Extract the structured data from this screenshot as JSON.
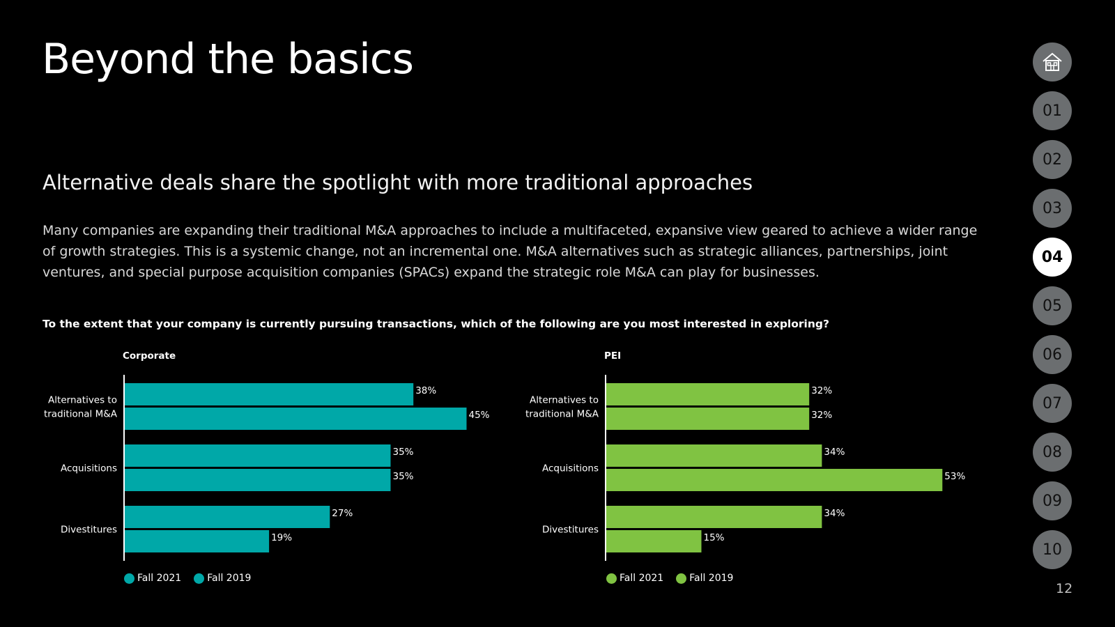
{
  "page": {
    "title": "Beyond the basics",
    "subtitle": "Alternative deals share the spotlight with more traditional approaches",
    "body": "Many companies are expanding their traditional M&A approaches to include a multifaceted, expansive view geared to achieve a wider range of growth strategies. This is a systemic change, not an incremental one. M&A alternatives such as strategic alliances, partnerships, joint ventures, and special purpose acquisition companies (SPACs) expand the strategic role M&A can play for businesses.",
    "question": "To the extent that your company is currently pursuing transactions, which of the following are you most interested in exploring?",
    "page_number": "12"
  },
  "nav": {
    "home_icon": "home-icon",
    "items": [
      "01",
      "02",
      "03",
      "04",
      "05",
      "06",
      "07",
      "08",
      "09",
      "10"
    ],
    "active": "04",
    "colors": {
      "inactive": "#6b6e70",
      "active": "#ffffff"
    }
  },
  "chart_data": [
    {
      "type": "bar",
      "orientation": "horizontal",
      "title": "Corporate",
      "categories": [
        "Alternatives to traditional M&A",
        "Acquisitions",
        "Divestitures"
      ],
      "category_lines": [
        [
          "Alternatives to",
          "traditional M&A"
        ],
        [
          "Acquisitions"
        ],
        [
          "Divestitures"
        ]
      ],
      "series": [
        {
          "name": "Fall 2021",
          "values": [
            38,
            35,
            27
          ],
          "labels": [
            "38%",
            "35%",
            "27%"
          ],
          "color": "#00a8a8"
        },
        {
          "name": "Fall 2019",
          "values": [
            45,
            35,
            19
          ],
          "labels": [
            "45%",
            "35%",
            "19%"
          ],
          "color": "#00a8a8"
        }
      ],
      "xlim": [
        0,
        60
      ],
      "unit": "%",
      "legend": "bottom-left"
    },
    {
      "type": "bar",
      "orientation": "horizontal",
      "title": "PEI",
      "categories": [
        "Alternatives to traditional M&A",
        "Acquisitions",
        "Divestitures"
      ],
      "category_lines": [
        [
          "Alternatives to",
          "traditional M&A"
        ],
        [
          "Acquisitions"
        ],
        [
          "Divestitures"
        ]
      ],
      "series": [
        {
          "name": "Fall 2021",
          "values": [
            32,
            34,
            34
          ],
          "labels": [
            "32%",
            "34%",
            "34%"
          ],
          "color": "#80c342"
        },
        {
          "name": "Fall 2019",
          "values": [
            32,
            53,
            15
          ],
          "labels": [
            "32%",
            "53%",
            "15%"
          ],
          "color": "#80c342"
        }
      ],
      "xlim": [
        0,
        60
      ],
      "unit": "%",
      "legend": "bottom-left"
    }
  ]
}
